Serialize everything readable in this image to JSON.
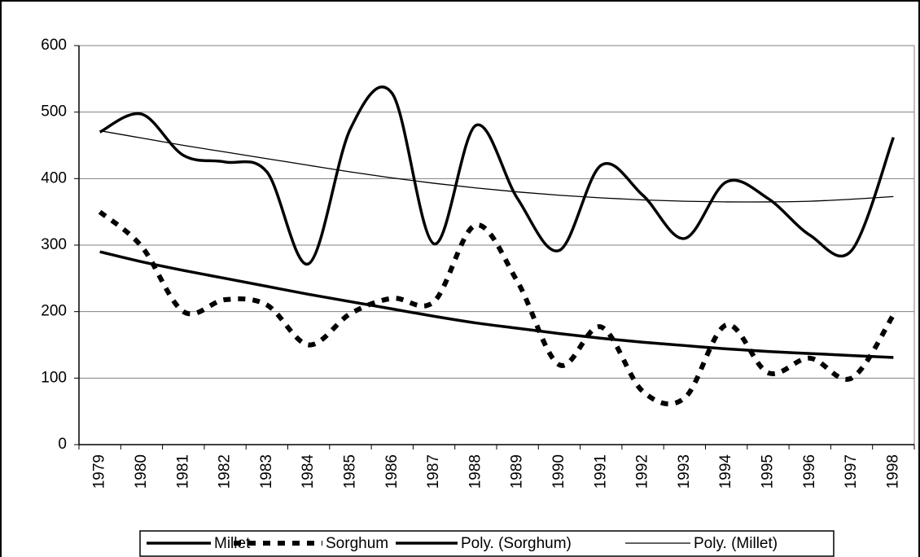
{
  "chart_data": {
    "type": "line",
    "categories": [
      "1979",
      "1980",
      "1981",
      "1982",
      "1983",
      "1984",
      "1985",
      "1986",
      "1987",
      "1988",
      "1989",
      "1990",
      "1991",
      "1992",
      "1993",
      "1994",
      "1995",
      "1996",
      "1997",
      "1998"
    ],
    "series": [
      {
        "name": "Millet",
        "color": "#000000",
        "style": "thick",
        "values": [
          470,
          497,
          435,
          425,
          410,
          272,
          475,
          528,
          302,
          480,
          370,
          292,
          420,
          375,
          310,
          395,
          370,
          315,
          292,
          462
        ]
      },
      {
        "name": "Sorghum",
        "color": "#000000",
        "style": "dashed",
        "values": [
          350,
          298,
          200,
          218,
          210,
          150,
          197,
          220,
          215,
          330,
          245,
          120,
          177,
          80,
          70,
          180,
          108,
          130,
          100,
          195
        ]
      },
      {
        "name": "Poly. (Sorghum)",
        "color": "#000000",
        "style": "thick",
        "values": [
          290,
          275,
          262,
          250,
          238,
          226,
          215,
          204,
          193,
          183,
          175,
          167,
          160,
          154,
          149,
          144,
          140,
          137,
          134,
          131
        ]
      },
      {
        "name": "Poly. (Millet)",
        "color": "#000000",
        "style": "thin",
        "values": [
          472,
          461,
          450,
          440,
          430,
          420,
          410,
          401,
          393,
          386,
          380,
          375,
          371,
          368,
          366,
          365,
          365,
          366,
          369,
          373
        ]
      }
    ],
    "ylim": [
      0,
      600
    ],
    "yticks": [
      0,
      100,
      200,
      300,
      400,
      500,
      600
    ],
    "grid": true,
    "legend": "bottom"
  }
}
